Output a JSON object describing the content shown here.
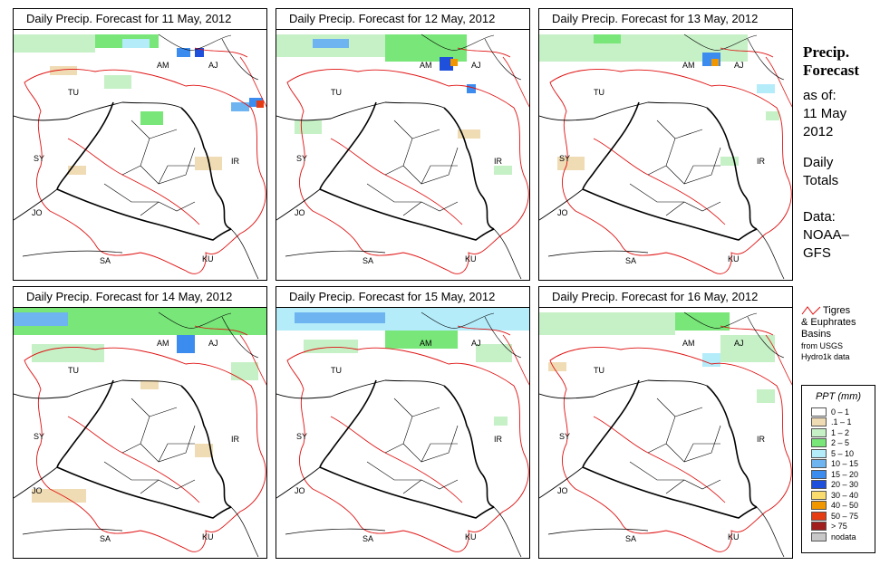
{
  "panels": [
    {
      "title": "Daily Precip. Forecast for  11 May, 2012"
    },
    {
      "title": "Daily Precip. Forecast for  12 May, 2012"
    },
    {
      "title": "Daily Precip. Forecast for  13 May, 2012"
    },
    {
      "title": "Daily Precip. Forecast for  14 May, 2012"
    },
    {
      "title": "Daily Precip. Forecast for  15 May, 2012"
    },
    {
      "title": "Daily Precip. Forecast for  16 May, 2012"
    }
  ],
  "map_labels": {
    "am": "AM",
    "aj": "AJ",
    "tu": "TU",
    "sy": "SY",
    "ir": "IR",
    "jo": "JO",
    "sa": "SA",
    "ku": "KU"
  },
  "sidebar": {
    "heading1": "Precip.",
    "heading2": "Forecast",
    "as_of": "as of:",
    "date1": "11 May",
    "date2": "2012",
    "daily1": "Daily",
    "daily2": "Totals",
    "data1": "Data:",
    "data2": "NOAA–",
    "data3": "GFS"
  },
  "basin_legend": {
    "line1": "Tigres",
    "line2": "& Euphrates",
    "line3": "Basins",
    "src1": "from USGS",
    "src2": "Hydro1k data"
  },
  "ppt_legend": {
    "title": "PPT (mm)",
    "classes": [
      {
        "label": "0 – 1",
        "color": "#ffffff"
      },
      {
        "label": ".1 – 1",
        "color": "#f0dcb4"
      },
      {
        "label": "1 – 2",
        "color": "#c6f0c6"
      },
      {
        "label": "2 – 5",
        "color": "#78e678"
      },
      {
        "label": "5 – 10",
        "color": "#b4ecfa"
      },
      {
        "label": "10 – 15",
        "color": "#6eb4f0"
      },
      {
        "label": "15 – 20",
        "color": "#3c8cf0"
      },
      {
        "label": "20 – 30",
        "color": "#1e50dc"
      },
      {
        "label": "30 – 40",
        "color": "#fadc6e"
      },
      {
        "label": "40 – 50",
        "color": "#f09600"
      },
      {
        "label": "50 – 75",
        "color": "#e63c14"
      },
      {
        "label": "> 75",
        "color": "#a01e1e"
      },
      {
        "label": "nodata",
        "color": "#c8c8c8"
      }
    ]
  },
  "colors": {
    "country_border": "#000000",
    "basin_outline": "#e01010"
  }
}
